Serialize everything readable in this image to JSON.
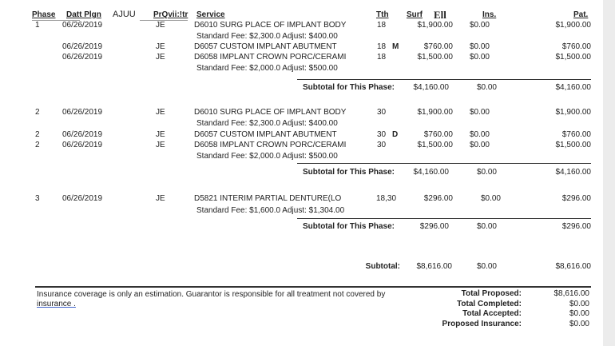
{
  "header": {
    "phase": "Phase",
    "date": "Datt Plgn",
    "ajuu": "AJUU",
    "provider": "PrQvii:!tr",
    "service": "Service",
    "tooth": "Tth",
    "surf": "Surf",
    "fee": "Ell",
    "ins": "Ins.",
    "pat": "Pat."
  },
  "phases": [
    {
      "rows": [
        {
          "phase": "1",
          "date": "06/26/2019",
          "prov": "JE",
          "service": "D6010 SURG PLACE OF IMPLANT BODY",
          "tooth": "18",
          "surf": "",
          "fee": "$1,900.00",
          "ins": "$0.00",
          "pat": "$1,900.00"
        },
        {
          "std": "Standard Fee: $2,300.0 Adjust: $400.00"
        },
        {
          "phase": "",
          "date": "06/26/2019",
          "prov": "JE",
          "service": "D6057 CUSTOM IMPLANT ABUTMENT",
          "tooth": "18",
          "surf": "M",
          "fee": "$760.00",
          "ins": "$0.00",
          "pat": "$760.00"
        },
        {
          "phase": "",
          "date": "06/26/2019",
          "prov": "JE",
          "service": "D6058 IMPLANT CROWN PORC/CERAMI",
          "tooth": "18",
          "surf": "",
          "fee": "$1,500.00",
          "ins": "$0.00",
          "pat": "$1,500.00"
        },
        {
          "std": "Standard Fee: $2,000.0 Adjust: $500.00"
        }
      ],
      "subtotal": {
        "label": "Subtotal for This Phase:",
        "fee": "$4,160.00",
        "ins": "$0.00",
        "pat": "$4,160.00"
      }
    },
    {
      "rows": [
        {
          "phase": "2",
          "date": "06/26/2019",
          "prov": "JE",
          "service": "D6010 SURG PLACE OF IMPLANT BODY",
          "tooth": "30",
          "surf": "",
          "fee": "$1,900.00",
          "ins": "$0.00",
          "pat": "$1,900.00"
        },
        {
          "std": "Standard Fee: $2,300.0 Adjust: $400.00"
        },
        {
          "phase": "2",
          "date": "06/26/2019",
          "prov": "JE",
          "service": "D6057 CUSTOM IMPLANT ABUTMENT",
          "tooth": "30",
          "surf": "D",
          "fee": "$760.00",
          "ins": "$0.00",
          "pat": "$760.00"
        },
        {
          "phase": "2",
          "date": "06/26/2019",
          "prov": "JE",
          "service": "D6058 IMPLANT CROWN PORC/CERAMI",
          "tooth": "30",
          "surf": "",
          "fee": "$1,500.00",
          "ins": "$0.00",
          "pat": "$1,500.00"
        },
        {
          "std": "Standard Fee: $2,000.0 Adjust: $500.00"
        }
      ],
      "subtotal": {
        "label": "Subtotal for This Phase:",
        "fee": "$4,160.00",
        "ins": "$0.00",
        "pat": "$4,160.00"
      }
    },
    {
      "rows": [
        {
          "phase": "3",
          "date": "06/26/2019",
          "prov": "JE",
          "service": "D5821  INTERIM PARTIAL DENTURE(LO",
          "tooth": "18,30",
          "surf": "",
          "fee": "$296.00",
          "ins": "$0.00",
          "pat": "$296.00"
        },
        {
          "std": "Standard Fee: $1,600.0 Adjust: $1,304.00"
        }
      ],
      "subtotal": {
        "label": "Subtotal for This Phase:",
        "fee": "$296.00",
        "ins": "$0.00",
        "pat": "$296.00"
      }
    }
  ],
  "grand": {
    "label": "Subtotal:",
    "fee": "$8,616.00",
    "ins": "$0.00",
    "pat": "$8,616.00"
  },
  "footer": {
    "note1": "Insurance coverage is only an estimation. Guarantor is responsible for all treatment not covered by",
    "note2": "insurance .",
    "totals": [
      {
        "label": "Total Proposed:",
        "value": "$8,616.00"
      },
      {
        "label": "Total Completed:",
        "value": "$0.00"
      },
      {
        "label": "Total Accepted:",
        "value": "$0.00"
      },
      {
        "label": "Proposed Insurance:",
        "value": "$0.00"
      }
    ]
  }
}
